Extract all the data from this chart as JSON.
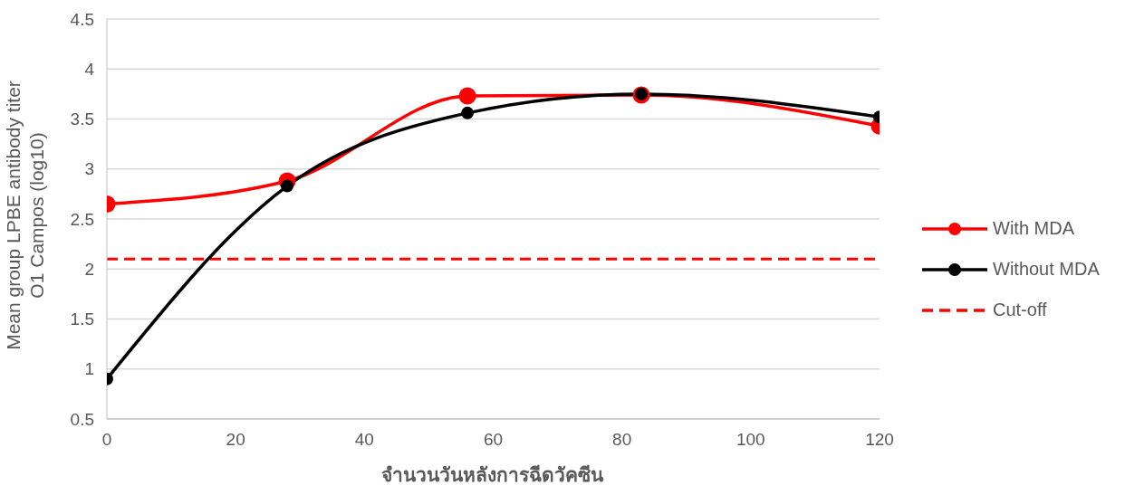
{
  "chart_data": {
    "type": "line",
    "xlabel": "จำนวนวันหลังการฉีดวัคซีน",
    "ylabel": "Mean group LPBE antibody titer\nO1 Campos (log10)",
    "x": [
      0,
      28,
      56,
      83,
      120
    ],
    "series": [
      {
        "name": "With MDA",
        "color": "#ff0000",
        "values": [
          2.65,
          2.88,
          3.73,
          3.74,
          3.43
        ]
      },
      {
        "name": "Without MDA",
        "color": "#000000",
        "values": [
          0.9,
          2.83,
          3.56,
          3.75,
          3.52
        ]
      }
    ],
    "ref_lines": [
      {
        "axis": "y",
        "value": 2.1,
        "label": "Cut-off",
        "color": "#ff0000",
        "line_style": "dashed"
      }
    ],
    "xlim": [
      0,
      120
    ],
    "xticks": [
      0,
      20,
      40,
      60,
      80,
      100,
      120
    ],
    "ylim": [
      0.5,
      4.5
    ],
    "yticks": [
      0.5,
      1,
      1.5,
      2,
      2.5,
      3,
      3.5,
      4,
      4.5
    ],
    "grid": "y",
    "legend": "right",
    "marker": "circle",
    "line_style": "solid"
  }
}
